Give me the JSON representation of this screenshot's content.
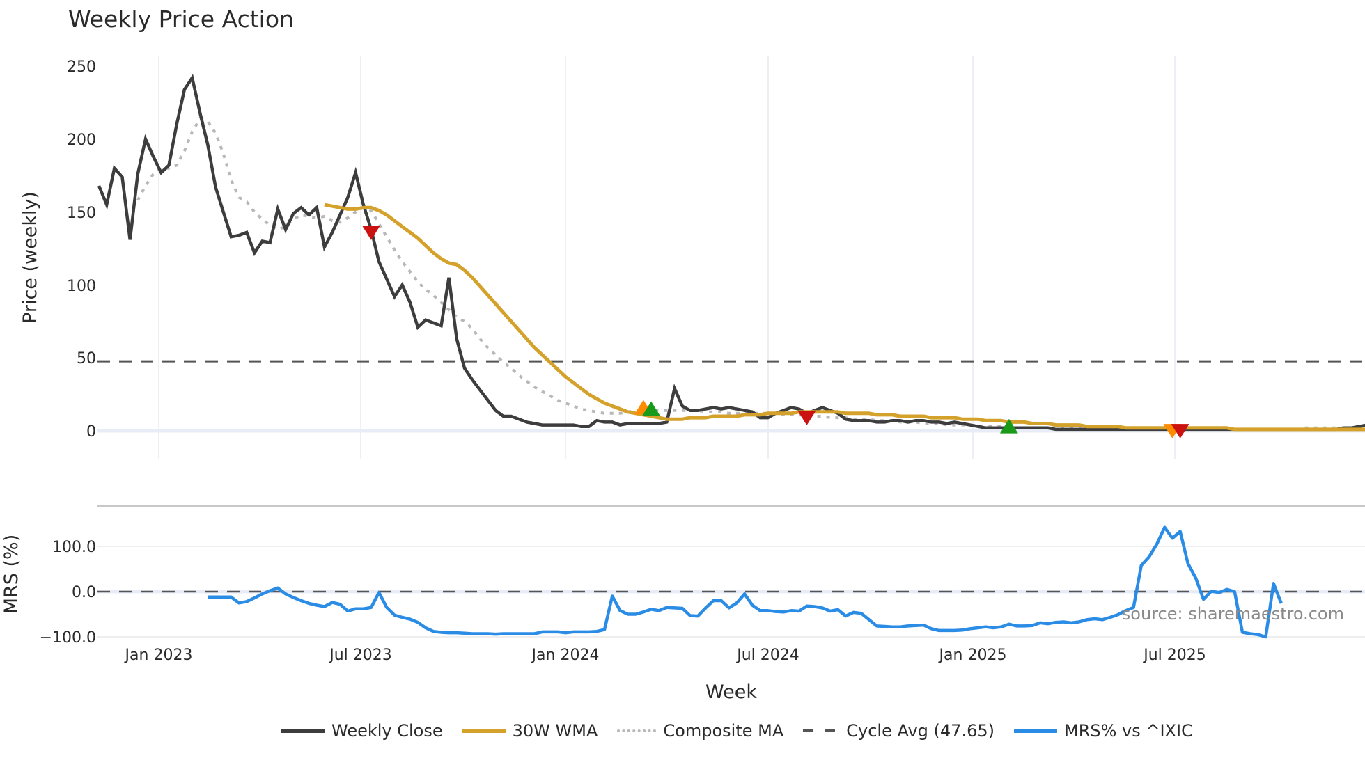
{
  "title": "Weekly Price Action",
  "source_label": "source: sharemaestro.com",
  "colors": {
    "weekly_close": "#3d3d3d",
    "wma30": "#d4a22a",
    "composite_ma": "#b8b8b8",
    "cycle_avg": "#555555",
    "mrs": "#2b8ce6",
    "signal_sell": "#cc1111",
    "signal_buy_green": "#1a9a1a",
    "signal_orange": "#ff8c00",
    "grid": "#e8ecf2"
  },
  "chart_data": [
    {
      "type": "line",
      "panel": "price",
      "title": "Weekly Price Action",
      "xlabel": "Week",
      "ylabel": "Price (weekly)",
      "ylim": [
        -20,
        260
      ],
      "yticks": [
        0,
        50,
        100,
        150,
        200,
        250
      ],
      "xticks": [
        "Jan 2023",
        "Jul 2023",
        "Jan 2024",
        "Jul 2024",
        "Jan 2025",
        "Jul 2025"
      ],
      "grid": true,
      "legend_position": "bottom",
      "start_week_offset": -6,
      "series": [
        {
          "name": "Weekly Close",
          "style": "solid",
          "start_index": 0,
          "values": [
            168,
            155,
            180,
            174,
            131,
            176,
            200,
            188,
            177,
            182,
            210,
            234,
            242,
            218,
            196,
            167,
            150,
            133,
            134,
            136,
            122,
            130,
            129,
            152,
            138,
            149,
            153,
            148,
            153,
            126,
            136,
            148,
            160,
            177,
            155,
            138,
            116,
            104,
            92,
            100,
            88,
            71,
            76,
            74,
            72,
            105,
            63,
            43,
            35,
            28,
            21,
            14,
            10,
            10,
            8,
            6,
            5,
            4,
            4,
            4,
            4,
            4,
            3,
            3,
            7,
            6,
            6,
            4,
            5,
            5,
            5,
            5,
            5,
            6,
            29,
            17,
            14,
            14,
            15,
            16,
            15,
            16,
            15,
            14,
            13,
            9,
            9,
            12,
            14,
            16,
            15,
            12,
            14,
            16,
            14,
            12,
            8,
            7,
            7,
            7,
            6,
            6,
            7,
            7,
            6,
            7,
            7,
            6,
            6,
            5,
            6,
            5,
            4,
            3,
            2,
            2,
            2,
            2,
            2,
            2,
            2,
            2,
            2,
            1,
            1,
            1,
            1,
            1,
            1,
            1,
            1,
            1,
            1,
            1,
            1,
            1,
            1,
            1,
            1,
            1,
            1,
            1,
            1,
            1,
            1,
            1,
            1,
            1,
            1,
            1,
            1,
            1,
            1,
            1,
            1,
            1,
            1,
            1,
            1,
            1,
            2,
            2,
            3,
            4,
            5,
            5,
            5,
            6,
            5,
            4,
            3,
            2,
            2,
            2,
            2,
            2,
            2,
            2,
            2,
            2,
            2,
            1,
            1,
            1,
            1,
            2
          ]
        },
        {
          "name": "30W WMA",
          "style": "solid",
          "start_index": 29,
          "values": [
            155,
            154,
            153,
            152,
            152,
            153,
            153,
            151,
            148,
            144,
            140,
            136,
            132,
            127,
            122,
            118,
            115,
            114,
            110,
            105,
            99,
            93,
            87,
            81,
            75,
            69,
            63,
            57,
            52,
            47,
            42,
            37,
            33,
            29,
            25,
            22,
            19,
            17,
            15,
            13,
            12,
            11,
            10,
            9,
            8,
            8,
            8,
            9,
            9,
            9,
            10,
            10,
            10,
            10,
            11,
            11,
            11,
            12,
            12,
            12,
            12,
            13,
            13,
            13,
            13,
            13,
            13,
            12,
            12,
            12,
            12,
            11,
            11,
            11,
            10,
            10,
            10,
            10,
            9,
            9,
            9,
            9,
            8,
            8,
            8,
            7,
            7,
            7,
            6,
            6,
            6,
            5,
            5,
            5,
            4,
            4,
            4,
            4,
            3,
            3,
            3,
            3,
            3,
            2,
            2,
            2,
            2,
            2,
            2,
            2,
            2,
            2,
            2,
            2,
            2,
            2,
            2,
            1,
            1,
            1,
            1,
            1,
            1,
            1,
            1,
            1,
            1,
            1,
            1,
            1,
            1,
            1,
            1,
            1,
            1,
            1,
            1,
            1,
            2,
            2,
            2,
            2,
            2,
            2,
            2,
            2,
            2,
            2,
            2,
            2,
            2,
            2,
            2,
            2,
            2,
            2,
            2,
            2,
            2
          ]
        },
        {
          "name": "Composite MA",
          "style": "dotted",
          "start_index": 5,
          "values": [
            158,
            168,
            176,
            180,
            180,
            182,
            192,
            205,
            214,
            212,
            204,
            190,
            172,
            160,
            157,
            150,
            145,
            141,
            138,
            140,
            145,
            148,
            147,
            146,
            147,
            144,
            143,
            146,
            150,
            153,
            151,
            142,
            133,
            124,
            116,
            109,
            102,
            97,
            93,
            88,
            83,
            78,
            75,
            70,
            63,
            57,
            52,
            47,
            43,
            38,
            34,
            30,
            27,
            24,
            21,
            19,
            17,
            15,
            14,
            13,
            12,
            12,
            12,
            13,
            14,
            14,
            14,
            14,
            14,
            14,
            14,
            14,
            14,
            13,
            13,
            13,
            12,
            12,
            12,
            12,
            12,
            12,
            12,
            11,
            11,
            11,
            10,
            10,
            10,
            9,
            9,
            9,
            8,
            8,
            8,
            7,
            7,
            7,
            6,
            6,
            6,
            5,
            5,
            5,
            4,
            4,
            4,
            4,
            3,
            3,
            3,
            3,
            2,
            2,
            2,
            2,
            2,
            2,
            2,
            2,
            2,
            2,
            2,
            2,
            2,
            1,
            1,
            1,
            1,
            1,
            1,
            1,
            1,
            1,
            1,
            1,
            1,
            1,
            1,
            1,
            1,
            1,
            1,
            1,
            1,
            1,
            1,
            1,
            1,
            1,
            2,
            2,
            2,
            2,
            2,
            2,
            2,
            2,
            2,
            2,
            2,
            2,
            2,
            2,
            2,
            2,
            2,
            2,
            2,
            2,
            2,
            2,
            2,
            2
          ]
        },
        {
          "name": "Cycle Avg (47.65)",
          "style": "dashed",
          "constant": 47.65
        }
      ],
      "signals": [
        {
          "kind": "sell",
          "shape": "triangle-down",
          "color": "#cc1111",
          "index": 35,
          "value": 137
        },
        {
          "kind": "buy",
          "shape": "triangle-up",
          "color": "#ff8c00",
          "index": 70,
          "value": 15
        },
        {
          "kind": "buy",
          "shape": "triangle-up",
          "color": "#1a9a1a",
          "index": 71,
          "value": 14
        },
        {
          "kind": "sell",
          "shape": "triangle-down",
          "color": "#cc1111",
          "index": 91,
          "value": 10
        },
        {
          "kind": "buy",
          "shape": "triangle-up",
          "color": "#1a9a1a",
          "index": 117,
          "value": 2
        },
        {
          "kind": "sell",
          "shape": "triangle-down",
          "color": "#ff8c00",
          "index": 138,
          "value": 1
        },
        {
          "kind": "sell",
          "shape": "triangle-down",
          "color": "#cc1111",
          "index": 139,
          "value": 1
        }
      ]
    },
    {
      "type": "line",
      "panel": "mrs",
      "xlabel": "Week",
      "ylabel": "MRS (%)",
      "ylim": [
        -110,
        175
      ],
      "yticks": [
        -100.0,
        0.0,
        100.0
      ],
      "ytick_labels": [
        "−100.0",
        "0.0",
        "100.0"
      ],
      "xticks": [
        "Jan 2023",
        "Jul 2023",
        "Jan 2024",
        "Jul 2024",
        "Jan 2025",
        "Jul 2025"
      ],
      "reference_line": {
        "value": 0,
        "style": "dashed"
      },
      "series": [
        {
          "name": "MRS% vs ^IXIC",
          "start_index": 14,
          "values": [
            -12,
            -12,
            -12,
            -12,
            -25,
            -22,
            -14,
            -5,
            2,
            8,
            -5,
            -13,
            -20,
            -26,
            -30,
            -33,
            -24,
            -28,
            -43,
            -38,
            -38,
            -35,
            -2,
            -35,
            -52,
            -57,
            -61,
            -68,
            -80,
            -88,
            -90,
            -91,
            -91,
            -92,
            -93,
            -93,
            -93,
            -94,
            -93,
            -93,
            -93,
            -93,
            -93,
            -89,
            -89,
            -89,
            -91,
            -89,
            -89,
            -89,
            -88,
            -84,
            -10,
            -42,
            -50,
            -50,
            -45,
            -39,
            -42,
            -35,
            -36,
            -37,
            -53,
            -54,
            -36,
            -20,
            -20,
            -36,
            -25,
            -5,
            -30,
            -42,
            -42,
            -44,
            -45,
            -42,
            -43,
            -32,
            -33,
            -36,
            -43,
            -40,
            -54,
            -46,
            -48,
            -62,
            -76,
            -77,
            -78,
            -78,
            -76,
            -75,
            -74,
            -82,
            -86,
            -86,
            -86,
            -85,
            -82,
            -80,
            -78,
            -80,
            -78,
            -72,
            -76,
            -76,
            -75,
            -69,
            -71,
            -68,
            -67,
            -69,
            -67,
            -62,
            -60,
            -62,
            -57,
            -51,
            -42,
            -35,
            58,
            77,
            105,
            142,
            118,
            133,
            62,
            30,
            -17,
            1,
            -2,
            5,
            0,
            -90,
            -93,
            -95,
            -100,
            18,
            -26
          ]
        }
      ]
    }
  ],
  "axes": {
    "price_y_label": "Price (weekly)",
    "mrs_y_label": "MRS (%)",
    "x_label": "Week",
    "price_yticks": [
      "250",
      "200",
      "150",
      "100",
      "50",
      "0"
    ],
    "mrs_yticks": [
      "100.0",
      "0.0",
      "−100.0"
    ],
    "xticks": [
      "Jan 2023",
      "Jul 2023",
      "Jan 2024",
      "Jul 2024",
      "Jan 2025",
      "Jul 2025"
    ]
  },
  "legend": [
    {
      "label": "Weekly Close",
      "style": "solid",
      "color": "#3d3d3d"
    },
    {
      "label": "30W WMA",
      "style": "solid",
      "color": "#d4a22a"
    },
    {
      "label": "Composite MA",
      "style": "dotted",
      "color": "#b8b8b8"
    },
    {
      "label": "Cycle Avg (47.65)",
      "style": "dashed",
      "color": "#555555"
    },
    {
      "label": "MRS% vs ^IXIC",
      "style": "solid",
      "color": "#2b8ce6"
    }
  ]
}
